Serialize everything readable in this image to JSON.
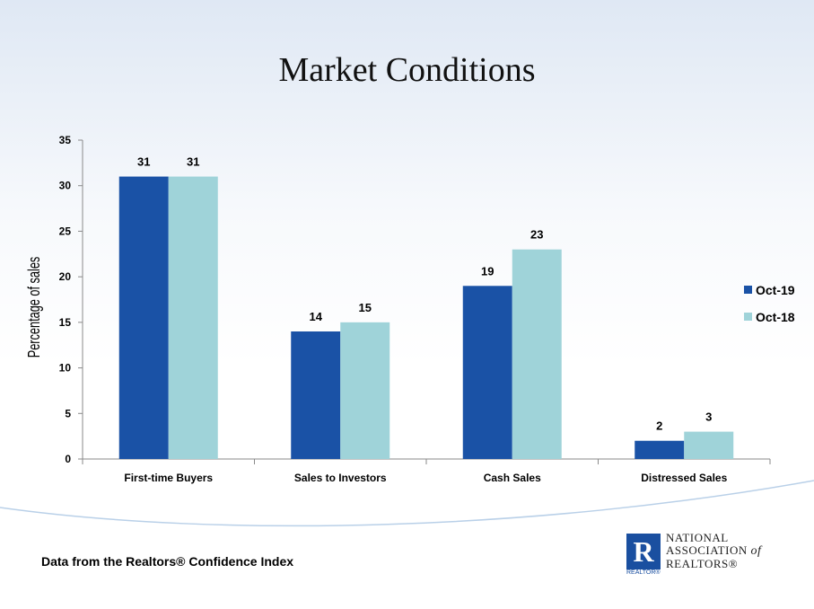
{
  "slide": {
    "title": "Market Conditions",
    "footnote": "Data from the Realtors® Confidence Index"
  },
  "logo": {
    "line1": "NATIONAL",
    "line2": "ASSOCIATION",
    "of": "of",
    "line3": "REALTORS®",
    "mark": "R",
    "sub": "REALTOR®"
  },
  "colors": {
    "series1": "#1a52a6",
    "series2": "#9fd3d9",
    "axis": "#8a8a8a"
  },
  "chart_data": {
    "type": "bar",
    "title": "",
    "ylabel": "Percentage of sales",
    "xlabel": "",
    "categories": [
      "First-time Buyers",
      "Sales to Investors",
      "Cash Sales",
      "Distressed Sales"
    ],
    "series": [
      {
        "name": "Oct-19",
        "values": [
          31,
          14,
          19,
          2
        ]
      },
      {
        "name": "Oct-18",
        "values": [
          31,
          15,
          23,
          3
        ]
      }
    ],
    "ylim": [
      0,
      35
    ],
    "yticks": [
      0,
      5,
      10,
      15,
      20,
      25,
      30,
      35
    ],
    "grid": false,
    "legend": "right",
    "data_labels": true
  }
}
